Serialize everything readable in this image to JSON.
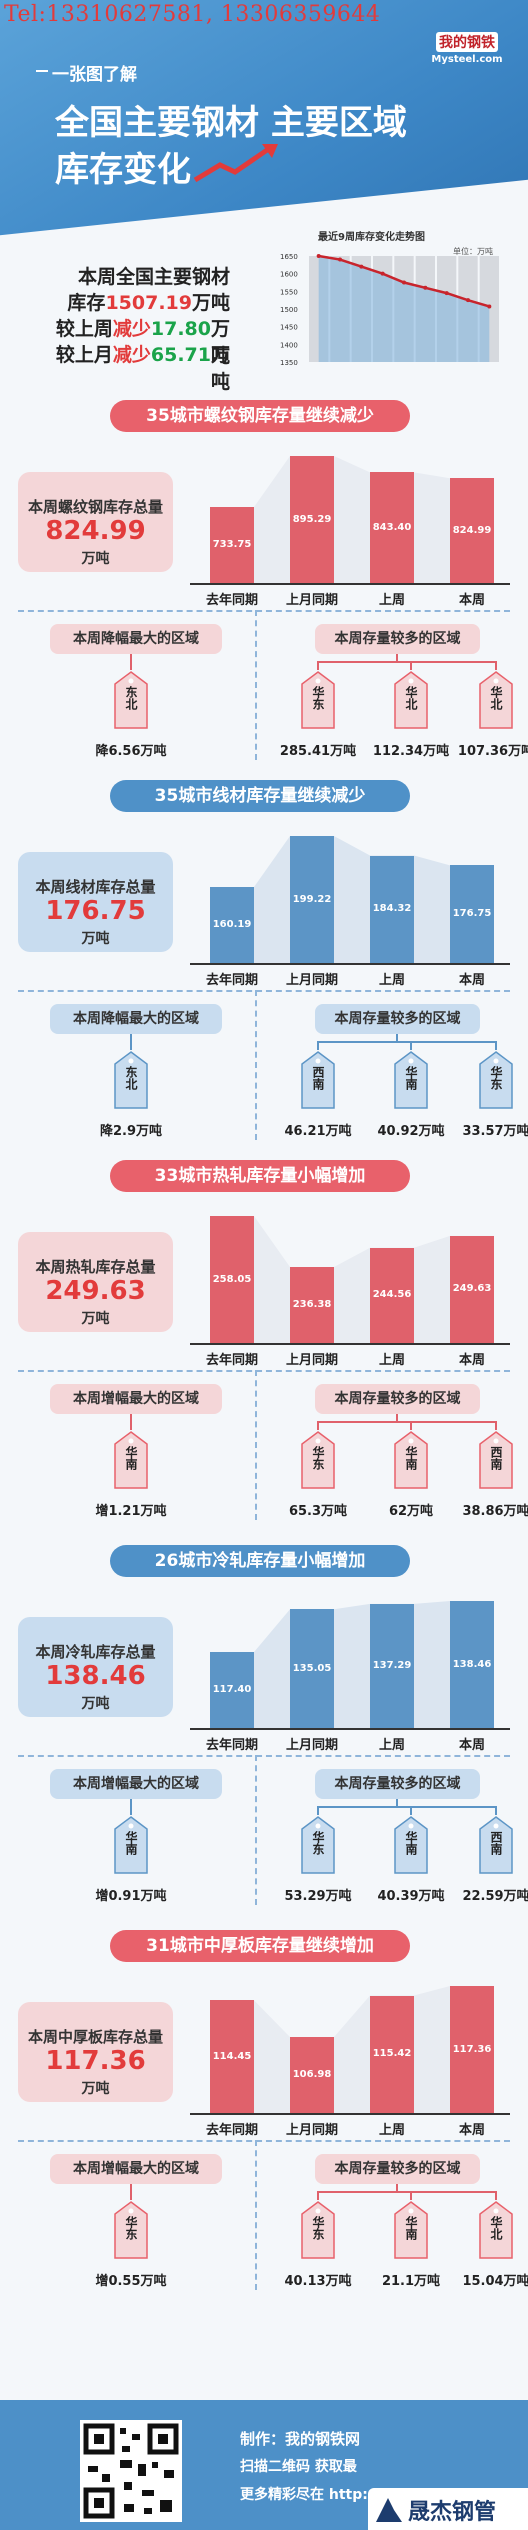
{
  "header": {
    "tel": "Tel:13310627581, 13306359644",
    "subtitle": "一张图了解",
    "title_line1": "全国主要钢材 主要区域",
    "title_line2": "库存变化",
    "logo_cn": "我的钢铁",
    "logo_en": "Mysteel.com"
  },
  "summary": {
    "line1": "本周全国主要钢材",
    "line2_pre": "库存",
    "line2_val": "1507.19",
    "line2_post": "万吨",
    "line3_pre": "较上周",
    "line3_dir": "减少",
    "line3_val": "17.80",
    "line3_post": "万吨",
    "line4_pre": "较上月",
    "line4_dir": "减少",
    "line4_val": "65.71",
    "line4_post": "万吨",
    "chart_title": "最近9周库存变化走势图",
    "chart_unit": "单位：万吨",
    "chart_yticks": [
      "1650",
      "1600",
      "1550",
      "1500",
      "1450",
      "1400",
      "1350"
    ]
  },
  "chart_data": [
    {
      "type": "area",
      "title": "最近9周库存变化走势图",
      "ylabel": "单位：万吨",
      "ylim": [
        1350,
        1650
      ],
      "values": [
        1650,
        1640,
        1620,
        1600,
        1575,
        1560,
        1545,
        1525,
        1507.19
      ]
    },
    {
      "type": "bar",
      "title": "35城市螺纹钢库存量继续减少",
      "categories": [
        "去年同期",
        "上月同期",
        "上周",
        "本周"
      ],
      "values": [
        733.75,
        895.29,
        843.4,
        824.99
      ]
    },
    {
      "type": "bar",
      "title": "35城市线材库存量继续减少",
      "categories": [
        "去年同期",
        "上月同期",
        "上周",
        "本周"
      ],
      "values": [
        160.19,
        199.22,
        184.32,
        176.75
      ]
    },
    {
      "type": "bar",
      "title": "33城市热轧库存量小幅增加",
      "categories": [
        "去年同期",
        "上月同期",
        "上周",
        "本周"
      ],
      "values": [
        258.05,
        236.38,
        244.56,
        249.63
      ]
    },
    {
      "type": "bar",
      "title": "26城市冷轧库存量小幅增加",
      "categories": [
        "去年同期",
        "上月同期",
        "上周",
        "本周"
      ],
      "values": [
        117.4,
        135.05,
        137.29,
        138.46
      ]
    },
    {
      "type": "bar",
      "title": "31城市中厚板库存量继续增加",
      "categories": [
        "去年同期",
        "上月同期",
        "上周",
        "本周"
      ],
      "values": [
        114.45,
        106.98,
        115.42,
        117.36
      ]
    }
  ],
  "colors": {
    "red": "#e23b3b",
    "green": "#1aa34a",
    "bar_red": "#e0616b",
    "bar_blue": "#5c95c6",
    "area_red": "#e8ecf2",
    "area_blue": "#dbe5f0"
  },
  "sections": [
    {
      "theme": "r",
      "title": "35城市螺纹钢库存量继续减少",
      "card_label": "本周螺纹钢库存总量",
      "card_value": "824.99",
      "card_unit": "万吨",
      "categories": [
        "去年同期",
        "上月同期",
        "上周",
        "本周"
      ],
      "values": [
        "733.75",
        "895.29",
        "843.40",
        "824.99"
      ],
      "left_pill": "本周降幅最大的区域",
      "right_pill": "本周存量较多的区域",
      "left_tag": {
        "name": "东北",
        "value": "降6.56万吨"
      },
      "right_tags": [
        {
          "name": "华东",
          "value": "285.41万吨"
        },
        {
          "name": "华北",
          "value": "112.34万吨"
        },
        {
          "name": "华北",
          "value": "107.36万吨"
        }
      ]
    },
    {
      "theme": "b",
      "title": "35城市线材库存量继续减少",
      "card_label": "本周线材库存总量",
      "card_value": "176.75",
      "card_unit": "万吨",
      "categories": [
        "去年同期",
        "上月同期",
        "上周",
        "本周"
      ],
      "values": [
        "160.19",
        "199.22",
        "184.32",
        "176.75"
      ],
      "left_pill": "本周降幅最大的区域",
      "right_pill": "本周存量较多的区域",
      "left_tag": {
        "name": "东北",
        "value": "降2.9万吨"
      },
      "right_tags": [
        {
          "name": "西南",
          "value": "46.21万吨"
        },
        {
          "name": "华南",
          "value": "40.92万吨"
        },
        {
          "name": "华东",
          "value": "33.57万吨"
        }
      ]
    },
    {
      "theme": "r",
      "title": "33城市热轧库存量小幅增加",
      "card_label": "本周热轧库存总量",
      "card_value": "249.63",
      "card_unit": "万吨",
      "categories": [
        "去年同期",
        "上月同期",
        "上周",
        "本周"
      ],
      "values": [
        "258.05",
        "236.38",
        "244.56",
        "249.63"
      ],
      "left_pill": "本周增幅最大的区域",
      "right_pill": "本周存量较多的区域",
      "left_tag": {
        "name": "华南",
        "value": "增1.21万吨"
      },
      "right_tags": [
        {
          "name": "华东",
          "value": "65.3万吨"
        },
        {
          "name": "华南",
          "value": "62万吨"
        },
        {
          "name": "西南",
          "value": "38.86万吨"
        }
      ]
    },
    {
      "theme": "b",
      "title": "26城市冷轧库存量小幅增加",
      "card_label": "本周冷轧库存总量",
      "card_value": "138.46",
      "card_unit": "万吨",
      "categories": [
        "去年同期",
        "上月同期",
        "上周",
        "本周"
      ],
      "values": [
        "117.40",
        "135.05",
        "137.29",
        "138.46"
      ],
      "left_pill": "本周增幅最大的区域",
      "right_pill": "本周存量较多的区域",
      "left_tag": {
        "name": "华南",
        "value": "增0.91万吨"
      },
      "right_tags": [
        {
          "name": "华东",
          "value": "53.29万吨"
        },
        {
          "name": "华南",
          "value": "40.39万吨"
        },
        {
          "name": "西南",
          "value": "22.59万吨"
        }
      ]
    },
    {
      "theme": "r",
      "title": "31城市中厚板库存量继续增加",
      "card_label": "本周中厚板库存总量",
      "card_value": "117.36",
      "card_unit": "万吨",
      "categories": [
        "去年同期",
        "上月同期",
        "上周",
        "本周"
      ],
      "values": [
        "114.45",
        "106.98",
        "115.42",
        "117.36"
      ],
      "left_pill": "本周增幅最大的区域",
      "right_pill": "本周存量较多的区域",
      "left_tag": {
        "name": "华东",
        "value": "增0.55万吨"
      },
      "right_tags": [
        {
          "name": "华东",
          "value": "40.13万吨"
        },
        {
          "name": "华南",
          "value": "21.1万吨"
        },
        {
          "name": "华北",
          "value": "15.04万吨"
        }
      ]
    }
  ],
  "footer": {
    "made_by": "制作：我的钢铁网",
    "scan": "扫描二维码 获取最",
    "more": "更多精彩尽在 http:",
    "brand": "晟杰钢管"
  }
}
